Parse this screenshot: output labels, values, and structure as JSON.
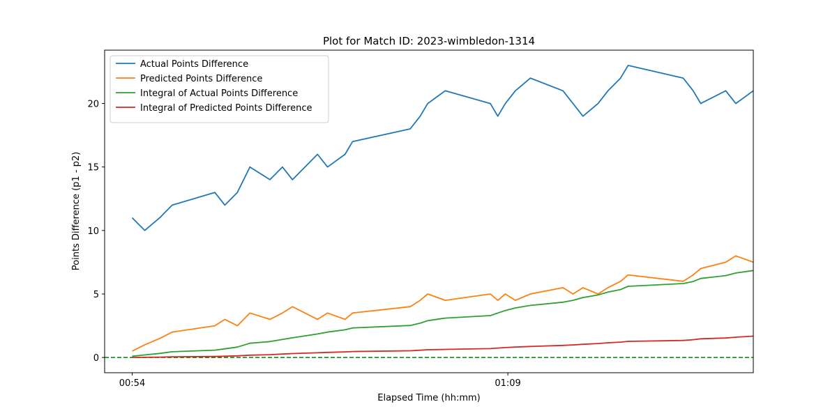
{
  "chart_data": {
    "type": "line",
    "title": "Plot for Match ID: 2023-wimbledon-1314",
    "xlabel": "Elapsed Time (hh:mm)",
    "ylabel": "Points Difference (p1 - p2)",
    "xlim": [
      52.9,
      78.8
    ],
    "ylim": [
      -1.2,
      24.2
    ],
    "x_ticks": [
      {
        "value": 54,
        "label": "00:54"
      },
      {
        "value": 69,
        "label": "01:09"
      }
    ],
    "y_ticks": [
      0,
      5,
      10,
      15,
      20
    ],
    "grid": false,
    "legend_position": "top-left",
    "reference_line": {
      "y": 0,
      "color": "#008000",
      "style": "dashed"
    },
    "series": [
      {
        "name": "Actual Points Difference",
        "color": "#1f77b4",
        "points": [
          [
            54.0,
            11
          ],
          [
            54.5,
            10
          ],
          [
            55.1,
            11
          ],
          [
            55.6,
            12
          ],
          [
            57.3,
            13
          ],
          [
            57.7,
            12
          ],
          [
            58.2,
            13
          ],
          [
            58.7,
            15
          ],
          [
            59.5,
            14
          ],
          [
            60.0,
            15
          ],
          [
            60.4,
            14
          ],
          [
            61.4,
            16
          ],
          [
            61.8,
            15
          ],
          [
            62.5,
            16
          ],
          [
            62.8,
            17
          ],
          [
            65.1,
            18
          ],
          [
            65.5,
            19
          ],
          [
            65.8,
            20
          ],
          [
            66.5,
            21
          ],
          [
            68.3,
            20
          ],
          [
            68.6,
            19
          ],
          [
            68.9,
            20
          ],
          [
            69.3,
            21
          ],
          [
            69.9,
            22
          ],
          [
            71.2,
            21
          ],
          [
            71.6,
            20
          ],
          [
            72.0,
            19
          ],
          [
            72.6,
            20
          ],
          [
            73.0,
            21
          ],
          [
            73.5,
            22
          ],
          [
            73.8,
            23
          ],
          [
            76.0,
            22
          ],
          [
            76.4,
            21
          ],
          [
            76.7,
            20
          ],
          [
            77.7,
            21
          ],
          [
            78.1,
            20
          ],
          [
            78.8,
            21
          ]
        ]
      },
      {
        "name": "Predicted Points Difference",
        "color": "#ff7f0e",
        "points": [
          [
            54.0,
            0.5
          ],
          [
            54.5,
            1.0
          ],
          [
            55.1,
            1.5
          ],
          [
            55.6,
            2.0
          ],
          [
            57.3,
            2.5
          ],
          [
            57.7,
            3.0
          ],
          [
            58.2,
            2.5
          ],
          [
            58.7,
            3.5
          ],
          [
            59.5,
            3.0
          ],
          [
            60.0,
            3.5
          ],
          [
            60.4,
            4.0
          ],
          [
            61.4,
            3.0
          ],
          [
            61.8,
            3.5
          ],
          [
            62.5,
            3.0
          ],
          [
            62.8,
            3.5
          ],
          [
            65.1,
            4.0
          ],
          [
            65.5,
            4.5
          ],
          [
            65.8,
            5.0
          ],
          [
            66.5,
            4.5
          ],
          [
            68.3,
            5.0
          ],
          [
            68.6,
            4.5
          ],
          [
            68.9,
            5.0
          ],
          [
            69.3,
            4.5
          ],
          [
            69.9,
            5.0
          ],
          [
            71.2,
            5.5
          ],
          [
            71.6,
            5.0
          ],
          [
            72.0,
            5.5
          ],
          [
            72.6,
            5.0
          ],
          [
            73.0,
            5.5
          ],
          [
            73.5,
            6.0
          ],
          [
            73.8,
            6.5
          ],
          [
            76.0,
            6.0
          ],
          [
            76.4,
            6.5
          ],
          [
            76.7,
            7.0
          ],
          [
            77.7,
            7.5
          ],
          [
            78.1,
            8.0
          ],
          [
            78.8,
            7.5
          ]
        ]
      },
      {
        "name": "Integral of Actual Points Difference",
        "color": "#2ca02c",
        "points": [
          [
            54.0,
            0.1
          ],
          [
            54.5,
            0.2
          ],
          [
            55.1,
            0.32
          ],
          [
            55.6,
            0.45
          ],
          [
            57.3,
            0.58
          ],
          [
            57.7,
            0.68
          ],
          [
            58.2,
            0.82
          ],
          [
            58.7,
            1.12
          ],
          [
            59.5,
            1.25
          ],
          [
            60.0,
            1.42
          ],
          [
            60.4,
            1.55
          ],
          [
            61.4,
            1.85
          ],
          [
            61.8,
            2.0
          ],
          [
            62.5,
            2.18
          ],
          [
            62.8,
            2.33
          ],
          [
            65.1,
            2.52
          ],
          [
            65.5,
            2.7
          ],
          [
            65.8,
            2.9
          ],
          [
            66.5,
            3.1
          ],
          [
            68.3,
            3.3
          ],
          [
            68.6,
            3.5
          ],
          [
            68.9,
            3.7
          ],
          [
            69.3,
            3.9
          ],
          [
            69.9,
            4.1
          ],
          [
            71.2,
            4.35
          ],
          [
            71.6,
            4.5
          ],
          [
            72.0,
            4.72
          ],
          [
            72.6,
            4.92
          ],
          [
            73.0,
            5.15
          ],
          [
            73.5,
            5.35
          ],
          [
            73.8,
            5.6
          ],
          [
            76.0,
            5.82
          ],
          [
            76.4,
            5.98
          ],
          [
            76.7,
            6.22
          ],
          [
            77.7,
            6.45
          ],
          [
            78.1,
            6.65
          ],
          [
            78.8,
            6.85
          ]
        ]
      },
      {
        "name": "Integral of Predicted Points Difference",
        "color": "#d62728",
        "points": [
          [
            54.0,
            0.0
          ],
          [
            54.5,
            0.01
          ],
          [
            55.1,
            0.03
          ],
          [
            55.6,
            0.05
          ],
          [
            57.3,
            0.08
          ],
          [
            57.7,
            0.1
          ],
          [
            58.2,
            0.13
          ],
          [
            58.7,
            0.18
          ],
          [
            59.5,
            0.22
          ],
          [
            60.0,
            0.27
          ],
          [
            60.4,
            0.31
          ],
          [
            61.4,
            0.37
          ],
          [
            61.8,
            0.4
          ],
          [
            62.5,
            0.44
          ],
          [
            62.8,
            0.47
          ],
          [
            65.1,
            0.53
          ],
          [
            65.5,
            0.57
          ],
          [
            65.8,
            0.61
          ],
          [
            66.5,
            0.64
          ],
          [
            68.3,
            0.7
          ],
          [
            68.6,
            0.74
          ],
          [
            68.9,
            0.78
          ],
          [
            69.3,
            0.82
          ],
          [
            69.9,
            0.87
          ],
          [
            71.2,
            0.95
          ],
          [
            71.6,
            0.99
          ],
          [
            72.0,
            1.04
          ],
          [
            72.6,
            1.1
          ],
          [
            73.0,
            1.16
          ],
          [
            73.5,
            1.21
          ],
          [
            73.8,
            1.27
          ],
          [
            76.0,
            1.34
          ],
          [
            76.4,
            1.4
          ],
          [
            76.7,
            1.47
          ],
          [
            77.7,
            1.53
          ],
          [
            78.1,
            1.6
          ],
          [
            78.8,
            1.68
          ]
        ]
      }
    ]
  }
}
